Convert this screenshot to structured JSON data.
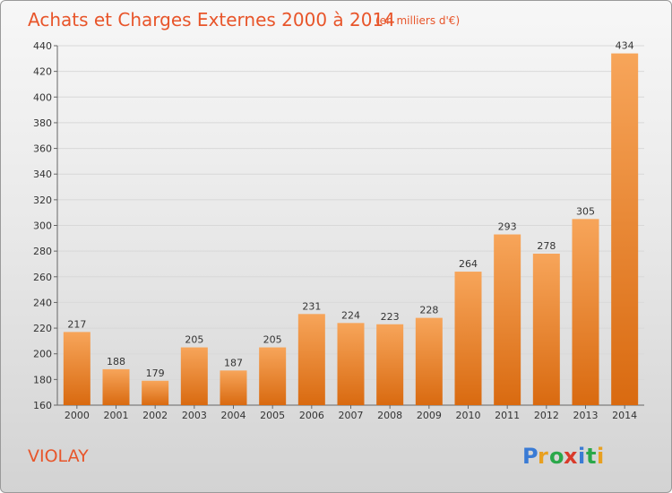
{
  "chart_data": {
    "type": "bar",
    "title": "Achats et Charges Externes 2000 à 2014",
    "subtitle": "(en milliers d'€)",
    "categories": [
      "2000",
      "2001",
      "2002",
      "2003",
      "2004",
      "2005",
      "2006",
      "2007",
      "2008",
      "2009",
      "2010",
      "2011",
      "2012",
      "2013",
      "2014"
    ],
    "values": [
      217,
      188,
      179,
      205,
      187,
      205,
      231,
      224,
      223,
      228,
      264,
      293,
      278,
      305,
      434
    ],
    "ylim": [
      160,
      440
    ],
    "yticks": [
      160,
      180,
      200,
      220,
      240,
      260,
      280,
      300,
      320,
      340,
      360,
      380,
      400,
      420,
      440
    ],
    "grid": true,
    "colors": {
      "bar_top": "#f7a55a",
      "bar_bottom": "#d96a10",
      "title": "#e8552a"
    }
  },
  "footer": {
    "place_name": "VIOLAY",
    "logo_text": "Proxiti"
  }
}
